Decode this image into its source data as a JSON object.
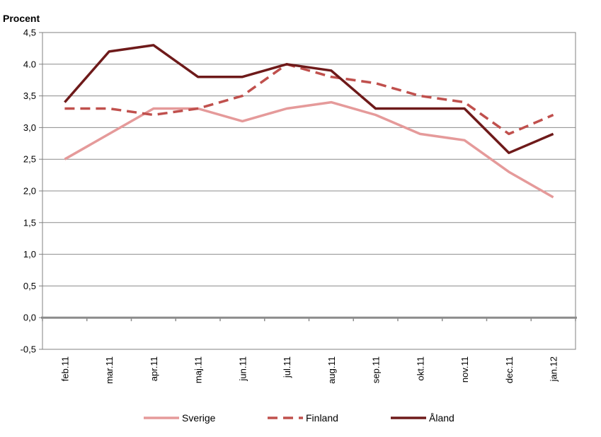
{
  "chart_data": {
    "type": "line",
    "title": "",
    "xlabel": "",
    "ylabel": "Procent",
    "categories": [
      "feb.11",
      "mar.11",
      "apr.11",
      "maj.11",
      "jun.11",
      "jul.11",
      "aug.11",
      "sep.11",
      "okt.11",
      "nov.11",
      "dec.11",
      "jan.12"
    ],
    "ylim": [
      -0.5,
      4.5
    ],
    "yticks": [
      "-0,5",
      "0,0",
      "0,5",
      "1,0",
      "1,5",
      "2,0",
      "2,5",
      "3,0",
      "3,5",
      "4.0",
      "4,5"
    ],
    "grid": true,
    "legend_position": "bottom",
    "series": [
      {
        "name": "Sverige",
        "values": [
          2.5,
          2.9,
          3.3,
          3.3,
          3.1,
          3.3,
          3.4,
          3.2,
          2.9,
          2.8,
          2.3,
          1.9
        ],
        "color": "#e59a9a",
        "style": "solid"
      },
      {
        "name": "Finland",
        "values": [
          3.3,
          3.3,
          3.2,
          3.3,
          3.5,
          4.0,
          3.8,
          3.7,
          3.5,
          3.4,
          2.9,
          3.2
        ],
        "color": "#c0504d",
        "style": "dashed"
      },
      {
        "name": "Åland",
        "values": [
          3.4,
          4.2,
          4.3,
          3.8,
          3.8,
          4.0,
          3.9,
          3.3,
          3.3,
          3.3,
          2.6,
          2.9
        ],
        "color": "#6e1a1a",
        "style": "solid"
      }
    ]
  }
}
